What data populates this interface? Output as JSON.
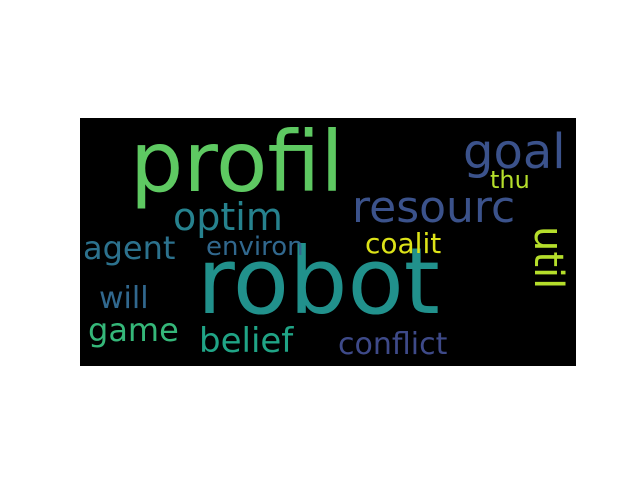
{
  "wordcloud": {
    "words": [
      {
        "id": "profil",
        "text": "profil",
        "color": "#5ec962"
      },
      {
        "id": "robot",
        "text": "robot",
        "color": "#21918c"
      },
      {
        "id": "goal",
        "text": "goal",
        "color": "#3b528b"
      },
      {
        "id": "thu",
        "text": "thu",
        "color": "#b5de2b"
      },
      {
        "id": "resourc",
        "text": "resourc",
        "color": "#3b528b"
      },
      {
        "id": "optim",
        "text": "optim",
        "color": "#26828e"
      },
      {
        "id": "agent",
        "text": "agent",
        "color": "#2c728e"
      },
      {
        "id": "environ",
        "text": "environ",
        "color": "#31688e"
      },
      {
        "id": "coalit",
        "text": "coalit",
        "color": "#dde318"
      },
      {
        "id": "util",
        "text": "util",
        "color": "#b5de2b"
      },
      {
        "id": "will",
        "text": "will",
        "color": "#31688e"
      },
      {
        "id": "game",
        "text": "game",
        "color": "#35b779"
      },
      {
        "id": "belief",
        "text": "belief",
        "color": "#20a486"
      },
      {
        "id": "conflict",
        "text": "conflict",
        "color": "#3e4a89"
      }
    ]
  }
}
